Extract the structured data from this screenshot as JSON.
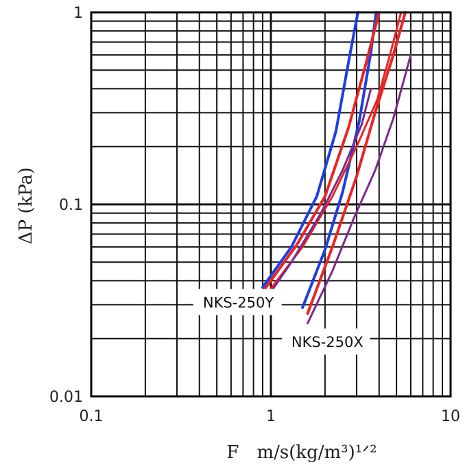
{
  "chart_data": {
    "type": "line",
    "title": "",
    "xlabel": "F　m/s(kg/m³)¹ᐟ²",
    "ylabel": "ΔP (kPa)",
    "xscale": "log",
    "yscale": "log",
    "xlim": [
      0.1,
      10
    ],
    "ylim": [
      0.01,
      1
    ],
    "xticks": [
      "0.1",
      "1",
      "10"
    ],
    "yticks": [
      "0.01",
      "0.1",
      "1"
    ],
    "grid": true,
    "legend": "none",
    "annotations": [
      {
        "text": "NKS-250Y",
        "x": 0.37,
        "y": 0.031
      },
      {
        "text": "NKS-250X",
        "x": 1.15,
        "y": 0.0193
      }
    ],
    "series": [
      {
        "color": "#1f3ee0",
        "stroke_width": 4,
        "x": [
          0.9,
          1.3,
          1.8,
          2.3,
          2.75,
          3.05
        ],
        "y": [
          0.037,
          0.06,
          0.11,
          0.24,
          0.6,
          1.0
        ]
      },
      {
        "color": "#1f3ee0",
        "stroke_width": 4,
        "x": [
          1.5,
          2.0,
          2.5,
          3.1,
          3.6,
          3.85
        ],
        "y": [
          0.029,
          0.058,
          0.115,
          0.27,
          0.62,
          1.0
        ]
      },
      {
        "color": "#e82525",
        "stroke_width": 4,
        "x": [
          0.9,
          1.4,
          2.0,
          2.7,
          3.4,
          4.0
        ],
        "y": [
          0.035,
          0.062,
          0.11,
          0.25,
          0.55,
          1.0
        ]
      },
      {
        "color": "#e82525",
        "stroke_width": 3,
        "x": [
          0.9,
          1.5,
          2.2,
          3.0,
          3.9,
          4.6,
          5.3
        ],
        "y": [
          0.032,
          0.06,
          0.11,
          0.2,
          0.35,
          0.6,
          1.0
        ]
      },
      {
        "color": "#e82525",
        "stroke_width": 4,
        "x": [
          1.6,
          2.2,
          3.0,
          3.8,
          4.8,
          5.6
        ],
        "y": [
          0.027,
          0.06,
          0.14,
          0.3,
          0.6,
          1.0
        ]
      },
      {
        "color": "#7a2a8a",
        "stroke_width": 3,
        "x": [
          0.85,
          1.3,
          1.9,
          2.5,
          3.2,
          3.6
        ],
        "y": [
          0.028,
          0.05,
          0.09,
          0.15,
          0.26,
          0.4
        ]
      },
      {
        "color": "#7a2a8a",
        "stroke_width": 3,
        "x": [
          1.6,
          2.2,
          2.9,
          3.8,
          4.8,
          6.0
        ],
        "y": [
          0.024,
          0.045,
          0.085,
          0.15,
          0.28,
          0.6
        ]
      }
    ]
  }
}
